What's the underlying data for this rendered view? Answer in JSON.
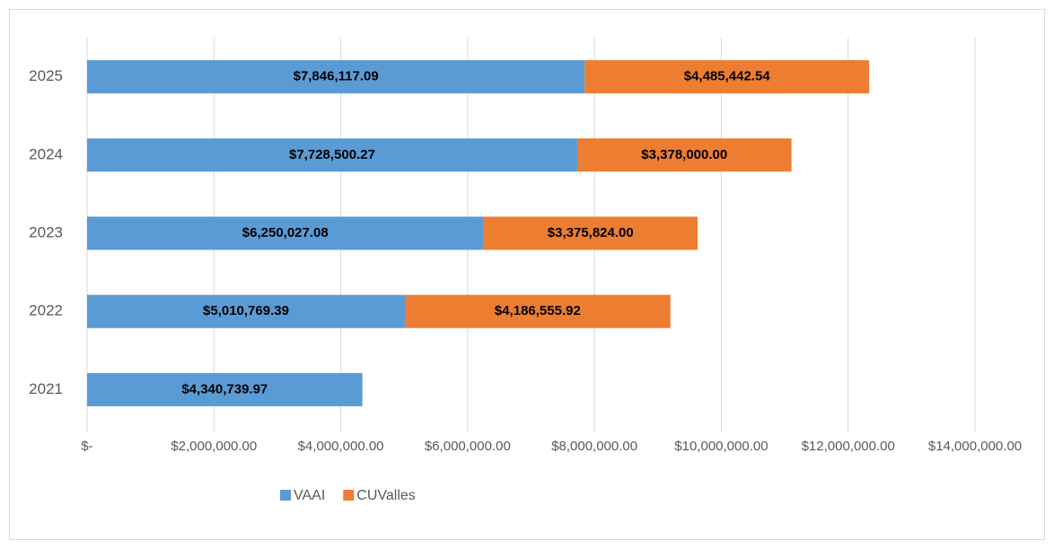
{
  "chart_data": {
    "type": "stacked_barh",
    "categories": [
      "2021",
      "2022",
      "2023",
      "2024",
      "2025"
    ],
    "series": [
      {
        "name": "VAAI",
        "color": "#5b9bd5",
        "values": [
          4340739.97,
          5010769.39,
          6250027.08,
          7728500.27,
          7846117.09
        ],
        "value_labels": [
          "$4,340,739.97",
          "$5,010,769.39",
          "$6,250,027.08",
          "$7,728,500.27",
          "$7,846,117.09"
        ]
      },
      {
        "name": "CUValles",
        "color": "#ed7d31",
        "values": [
          null,
          4186555.92,
          3375824.0,
          3378000.0,
          4485442.54
        ],
        "value_labels": [
          null,
          "$4,186,555.92",
          "$3,375,824.00",
          "$3,378,000.00",
          "$4,485,442.54"
        ]
      }
    ],
    "xlim": [
      0,
      14000000
    ],
    "xticks": [
      {
        "value": 0,
        "label": "$-"
      },
      {
        "value": 2000000,
        "label": "$2,000,000.00"
      },
      {
        "value": 4000000,
        "label": "$4,000,000.00"
      },
      {
        "value": 6000000,
        "label": "$6,000,000.00"
      },
      {
        "value": 8000000,
        "label": "$8,000,000.00"
      },
      {
        "value": 10000000,
        "label": "$10,000,000.00"
      },
      {
        "value": 12000000,
        "label": "$12,000,000.00"
      },
      {
        "value": 14000000,
        "label": "$14,000,000.00"
      }
    ],
    "grid": true,
    "legend": "bottom"
  }
}
